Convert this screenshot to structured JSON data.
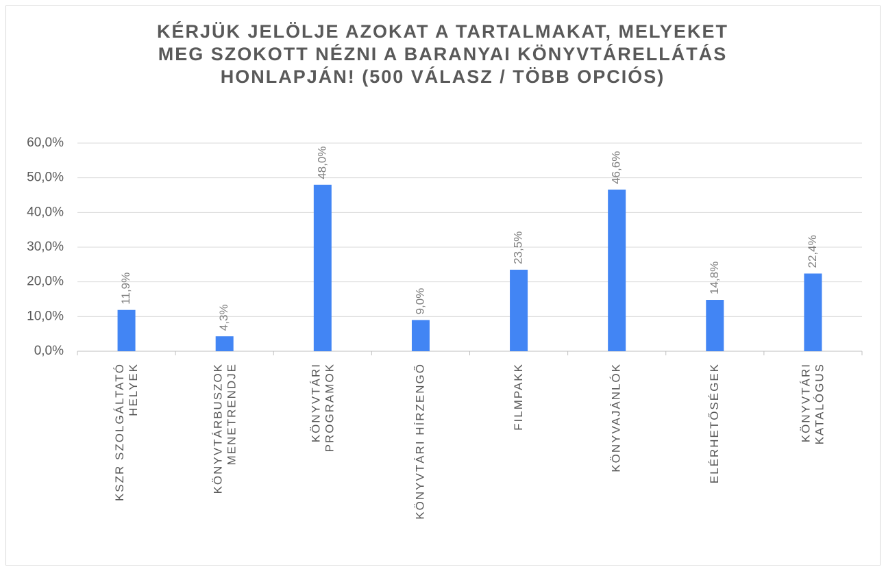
{
  "chart_data": {
    "type": "bar",
    "title": "KÉRJÜK JELÖLJE AZOKAT A TARTALMAKAT, MELYEKET MEG SZOKOTT NÉZNI A BARANYAI KÖNYVTÁRELLÁTÁS HONLAPJÁN! (500 VÁLASZ / TÖBB OPCIÓS)",
    "categories": [
      "KSZR SZOLGÁLTATÓ\nHELYEK",
      "KÖNYVTÁRBUSZOK\nMENETRENDJE",
      "KÖNYVTÁRI\nPROGRAMOK",
      "KÖNYVTÁRI HÍRZENGŐ",
      "FILMPAKK",
      "KÖNYVAJÁNLÓK",
      "ELÉRHETŐSÉGEK",
      "KÖNYVTÁRI\nKATALÓGUS"
    ],
    "values": [
      11.9,
      4.3,
      48.0,
      9.0,
      23.5,
      46.6,
      14.8,
      22.4
    ],
    "value_labels": [
      "11,9%",
      "4,3%",
      "48,0%",
      "9,0%",
      "23,5%",
      "46,6%",
      "14,8%",
      "22,4%"
    ],
    "color": "#4285f4",
    "ylim": [
      0,
      60
    ],
    "yticks": [
      {
        "value": 0,
        "label": "0,0%"
      },
      {
        "value": 10,
        "label": "10,0%"
      },
      {
        "value": 20,
        "label": "20,0%"
      },
      {
        "value": 30,
        "label": "30,0%"
      },
      {
        "value": 40,
        "label": "40,0%"
      },
      {
        "value": 50,
        "label": "50,0%"
      },
      {
        "value": 60,
        "label": "60,0%"
      }
    ],
    "grid": true
  }
}
